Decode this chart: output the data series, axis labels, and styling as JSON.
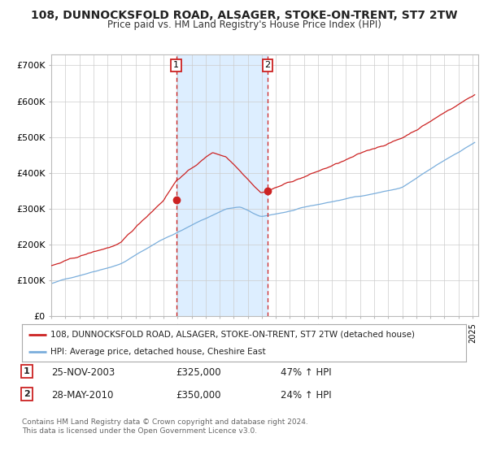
{
  "title": "108, DUNNOCKSFOLD ROAD, ALSAGER, STOKE-ON-TRENT, ST7 2TW",
  "subtitle": "Price paid vs. HM Land Registry's House Price Index (HPI)",
  "bg_color": "#ffffff",
  "plot_bg_color": "#ffffff",
  "grid_color": "#cccccc",
  "sale1_date": "2003-11-25",
  "sale1_price": 325000,
  "sale2_date": "2010-05-28",
  "sale2_price": 350000,
  "ylabel_ticks": [
    "£0",
    "£100K",
    "£200K",
    "£300K",
    "£400K",
    "£500K",
    "£600K",
    "£700K"
  ],
  "ytick_vals": [
    0,
    100000,
    200000,
    300000,
    400000,
    500000,
    600000,
    700000
  ],
  "legend1": "108, DUNNOCKSFOLD ROAD, ALSAGER, STOKE-ON-TRENT, ST7 2TW (detached house)",
  "legend2": "HPI: Average price, detached house, Cheshire East",
  "footer1": "Contains HM Land Registry data © Crown copyright and database right 2024.",
  "footer2": "This data is licensed under the Open Government Licence v3.0.",
  "hpi_color": "#7aaedc",
  "price_color": "#cc2222",
  "shade_color": "#ddeeff",
  "marker_color": "#cc2222",
  "row1_date": "25-NOV-2003",
  "row1_price": "£325,000",
  "row1_hpi": "47% ↑ HPI",
  "row2_date": "28-MAY-2010",
  "row2_price": "£350,000",
  "row2_hpi": "24% ↑ HPI"
}
